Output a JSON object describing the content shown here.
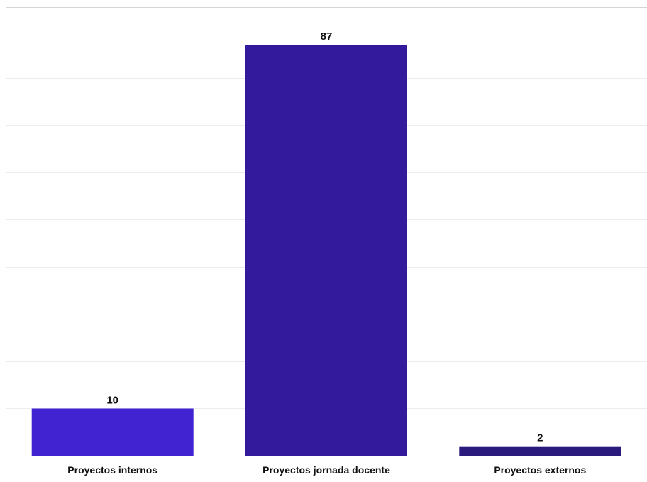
{
  "colors": {
    "bar_colors": [
      "#4223d2",
      "#331a9c",
      "#2b1a7d"
    ],
    "gridline": "#ececec",
    "frame": "#d4d4d4",
    "text": "#111111"
  },
  "chart_data": {
    "type": "bar",
    "categories": [
      "Proyectos internos",
      "Proyectos jornada docente",
      "Proyectos externos"
    ],
    "values": [
      10,
      87,
      2
    ],
    "title": "",
    "xlabel": "",
    "ylabel": "",
    "ylim": [
      0,
      95
    ],
    "grid": true,
    "gridline_values": [
      0,
      10,
      20,
      30,
      40,
      50,
      60,
      70,
      80,
      90
    ],
    "data_labels": [
      "10",
      "87",
      "2"
    ],
    "legend": "none"
  }
}
